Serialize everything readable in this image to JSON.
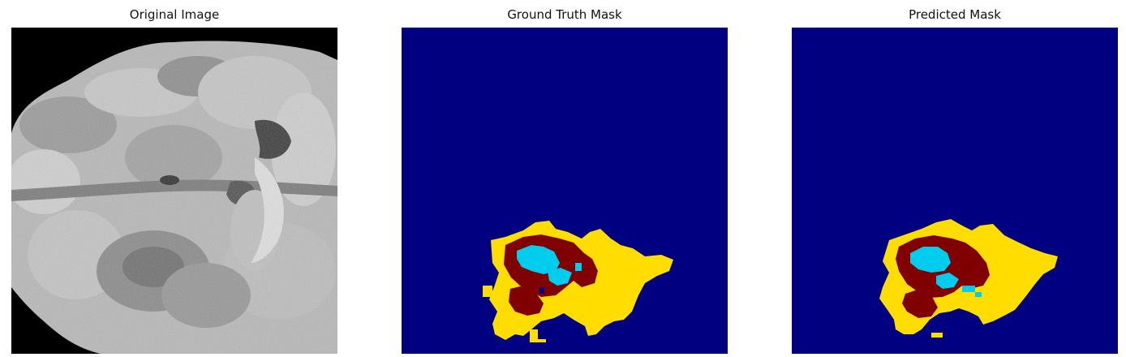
{
  "figure": {
    "panels": [
      {
        "title": "Original Image"
      },
      {
        "title": "Ground Truth Mask"
      },
      {
        "title": "Predicted Mask"
      }
    ]
  },
  "colors": {
    "background_class": "#000080",
    "edema_class": "#ffdd00",
    "necrotic_class": "#800000",
    "enhancing_class": "#00ccee",
    "mri_background": "#000000"
  }
}
